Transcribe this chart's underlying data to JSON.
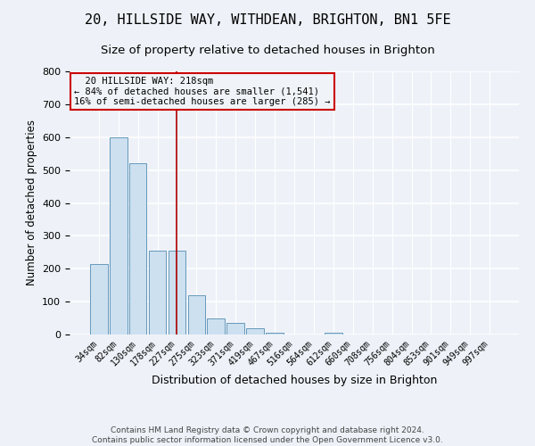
{
  "title_line1": "20, HILLSIDE WAY, WITHDEAN, BRIGHTON, BN1 5FE",
  "title_line2": "Size of property relative to detached houses in Brighton",
  "xlabel": "Distribution of detached houses by size in Brighton",
  "ylabel": "Number of detached properties",
  "footnote": "Contains HM Land Registry data © Crown copyright and database right 2024.\nContains public sector information licensed under the Open Government Licence v3.0.",
  "categories": [
    "34sqm",
    "82sqm",
    "130sqm",
    "178sqm",
    "227sqm",
    "275sqm",
    "323sqm",
    "371sqm",
    "419sqm",
    "467sqm",
    "516sqm",
    "564sqm",
    "612sqm",
    "660sqm",
    "708sqm",
    "756sqm",
    "804sqm",
    "853sqm",
    "901sqm",
    "949sqm",
    "997sqm"
  ],
  "values": [
    215,
    600,
    520,
    255,
    255,
    120,
    50,
    35,
    20,
    5,
    0,
    0,
    5,
    0,
    0,
    0,
    0,
    0,
    0,
    0,
    0
  ],
  "bar_color": "#cce0f0",
  "bar_edge_color": "#6699bb",
  "property_line_x": 4,
  "property_line_color": "#aa0000",
  "annotation_text": "  20 HILLSIDE WAY: 218sqm  \n← 84% of detached houses are smaller (1,541)\n16% of semi-detached houses are larger (285) →",
  "annotation_box_color": "#cc0000",
  "annotation_bg_color": "#f0f4f8",
  "ylim": [
    0,
    800
  ],
  "yticks": [
    0,
    100,
    200,
    300,
    400,
    500,
    600,
    700,
    800
  ],
  "bg_color": "#eef2f8",
  "grid_color": "#dce8f4",
  "title1_fontsize": 11,
  "title2_fontsize": 9.5,
  "footnote_fontsize": 6.5
}
